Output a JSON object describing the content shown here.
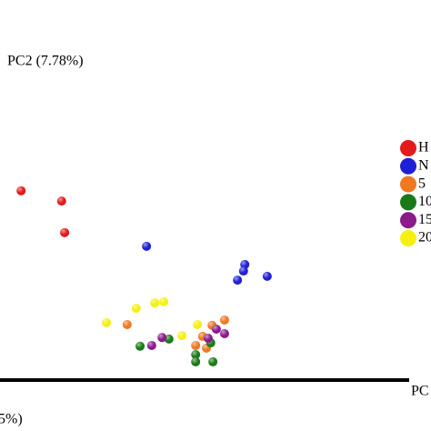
{
  "chart_data": {
    "type": "scatter",
    "y_label": "PC2 (7.78%)",
    "x_label": "PC",
    "x_label_tail": "5%)",
    "xlim": [
      0,
      100
    ],
    "ylim": [
      0,
      100
    ],
    "series": [
      {
        "name": "H",
        "color": "#e41a1c",
        "x": [
          4.9,
          14.3,
          15.0
        ],
        "values": [
          49.8,
          47.1,
          38.8
        ]
      },
      {
        "name": "N",
        "color": "#1f1fd6",
        "x": [
          34.0,
          56.8,
          56.5,
          62.0,
          55.1
        ],
        "values": [
          35.2,
          30.4,
          28.7,
          27.3,
          26.3
        ]
      },
      {
        "name": "5",
        "color": "#f07820",
        "x": [
          29.5,
          52.1,
          49.2,
          47.0,
          47.9,
          45.4
        ],
        "values": [
          14.6,
          15.8,
          14.4,
          11.5,
          8.4,
          9.1
        ]
      },
      {
        "name": "10",
        "color": "#1a7a1a",
        "x": [
          32.5,
          39.2,
          45.4,
          45.4,
          49.4,
          48.9
        ],
        "values": [
          8.9,
          10.8,
          6.7,
          4.8,
          4.8,
          9.8
        ]
      },
      {
        "name": "15",
        "color": "#8b1a8b",
        "x": [
          35.2,
          37.6,
          50.2,
          52.1,
          48.3
        ],
        "values": [
          9.1,
          11.2,
          13.4,
          12.2,
          11.0
        ]
      },
      {
        "name": "20",
        "color": "#f5f010",
        "x": [
          35.9,
          38.0,
          31.6,
          24.7,
          45.8,
          42.2
        ],
        "values": [
          20.3,
          20.6,
          18.9,
          15.1,
          14.6,
          11.7
        ]
      }
    ]
  }
}
